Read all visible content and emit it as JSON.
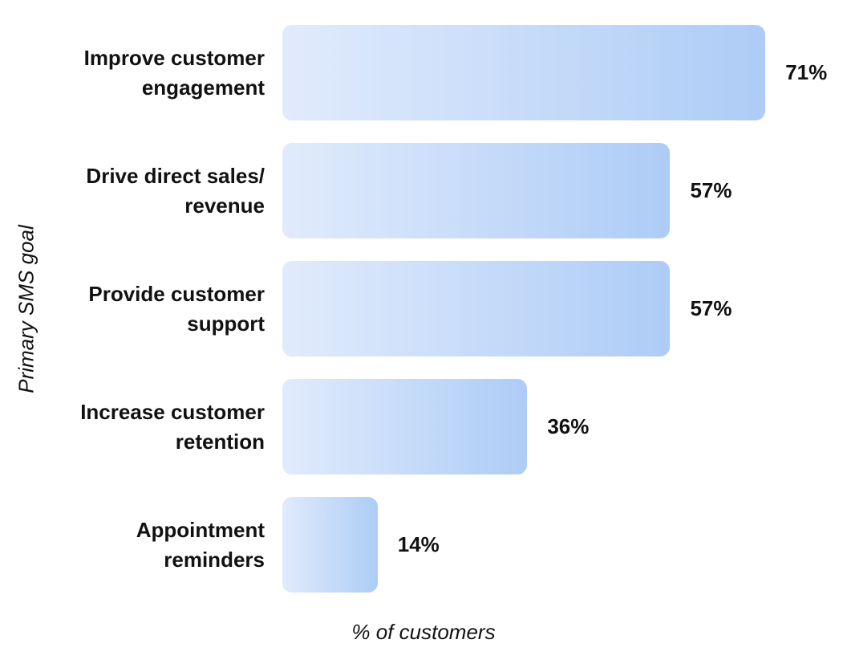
{
  "chart_data": {
    "type": "bar",
    "orientation": "horizontal",
    "title": "",
    "xlabel": "% of customers",
    "ylabel": "Primary SMS goal",
    "categories": [
      "Improve customer engagement",
      "Drive direct sales/revenue",
      "Provide customer support",
      "Increase customer retention",
      "Appointment reminders"
    ],
    "categories_display": [
      "Improve customer\nengagement",
      "Drive direct sales/\nrevenue",
      "Provide customer\nsupport",
      "Increase customer\nretention",
      "Appointment\nreminders"
    ],
    "values": [
      71,
      57,
      57,
      36,
      14
    ],
    "value_labels": [
      "71%",
      "57%",
      "57%",
      "36%",
      "14%"
    ],
    "xlim": [
      0,
      83
    ],
    "grid": false,
    "legend": null
  },
  "colors": {
    "background": "#ffffff",
    "text": "#111111",
    "bar_gradient_start": "#e1ebfc",
    "bar_gradient_end": "#adccf6"
  }
}
